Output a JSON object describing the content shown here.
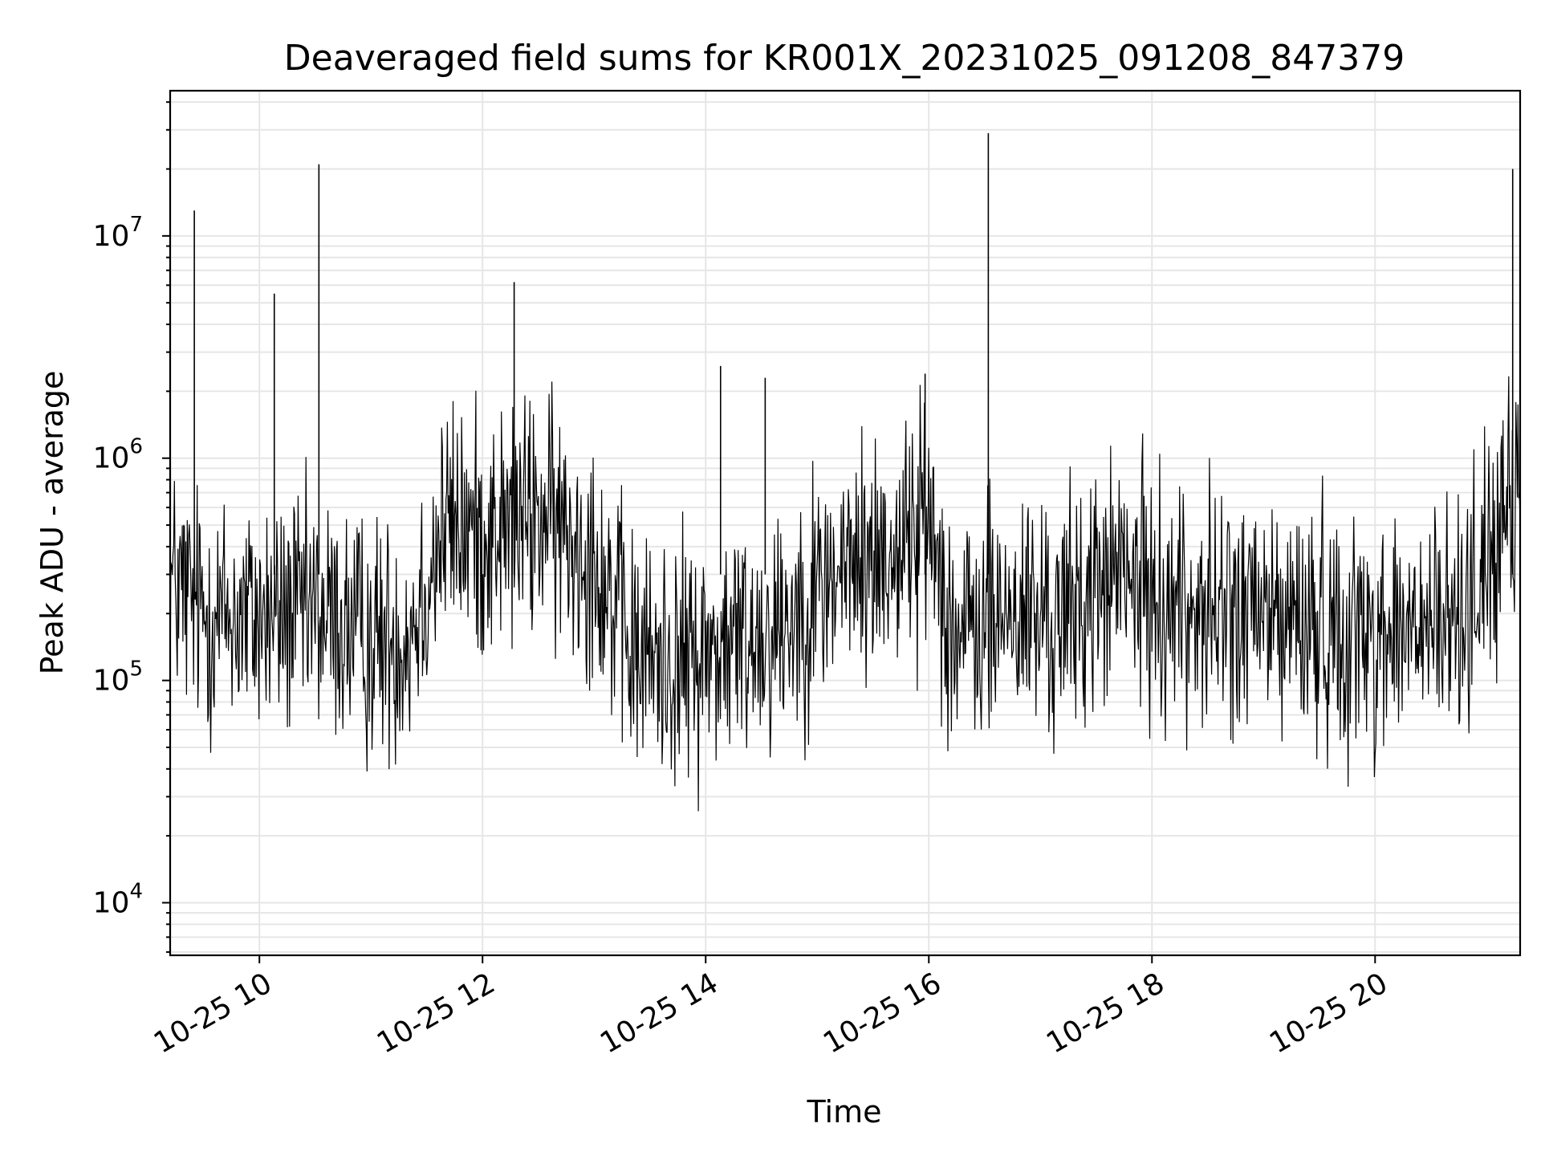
{
  "chart_data": {
    "type": "line",
    "title": "Deaveraged field sums for KR001X_20231025_091208_847379",
    "xlabel": "Time",
    "ylabel": "Peak ADU - average",
    "yscale": "log",
    "xlim": [
      "2023-10-25T09:12",
      "2023-10-25T21:18"
    ],
    "ylim": [
      5800,
      45000000
    ],
    "grid": true,
    "line_color": "#000000",
    "grid_color": "#e6e6e6",
    "x_ticks": [
      {
        "value": "2023-10-25T10:00",
        "label": "10-25 10"
      },
      {
        "value": "2023-10-25T12:00",
        "label": "10-25 12"
      },
      {
        "value": "2023-10-25T14:00",
        "label": "10-25 14"
      },
      {
        "value": "2023-10-25T16:00",
        "label": "10-25 16"
      },
      {
        "value": "2023-10-25T18:00",
        "label": "10-25 18"
      },
      {
        "value": "2023-10-25T20:00",
        "label": "10-25 20"
      }
    ],
    "y_ticks": [
      {
        "value": 10000,
        "base": "10",
        "exp": "4"
      },
      {
        "value": 100000,
        "base": "10",
        "exp": "5"
      },
      {
        "value": 1000000,
        "base": "10",
        "exp": "6"
      },
      {
        "value": 10000000,
        "base": "10",
        "exp": "7"
      }
    ],
    "x": [
      "2023-10-25T09:12",
      "2023-10-25T09:30",
      "2023-10-25T10:00",
      "2023-10-25T10:30",
      "2023-10-25T11:00",
      "2023-10-25T11:20",
      "2023-10-25T11:40",
      "2023-10-25T12:00",
      "2023-10-25T12:30",
      "2023-10-25T13:00",
      "2023-10-25T13:20",
      "2023-10-25T13:45",
      "2023-10-25T14:10",
      "2023-10-25T14:40",
      "2023-10-25T15:10",
      "2023-10-25T15:40",
      "2023-10-25T16:00",
      "2023-10-25T16:15",
      "2023-10-25T16:40",
      "2023-10-25T17:10",
      "2023-10-25T17:40",
      "2023-10-25T18:10",
      "2023-10-25T18:40",
      "2023-10-25T19:10",
      "2023-10-25T19:40",
      "2023-10-25T20:10",
      "2023-10-25T20:40",
      "2023-10-25T21:00",
      "2023-10-25T21:18"
    ],
    "y": [
      280000,
      200000,
      190000,
      200000,
      150000,
      160000,
      500000,
      450000,
      550000,
      380000,
      130000,
      120000,
      140000,
      180000,
      300000,
      380000,
      550000,
      150000,
      200000,
      180000,
      300000,
      220000,
      200000,
      190000,
      170000,
      160000,
      170000,
      350000,
      600000
    ],
    "spikes": [
      {
        "x": "2023-10-25T09:25",
        "y": 13000000
      },
      {
        "x": "2023-10-25T10:08",
        "y": 5500000
      },
      {
        "x": "2023-10-25T10:32",
        "y": 21000000
      },
      {
        "x": "2023-10-25T12:17",
        "y": 6200000
      },
      {
        "x": "2023-10-25T14:08",
        "y": 2600000
      },
      {
        "x": "2023-10-25T14:32",
        "y": 2300000
      },
      {
        "x": "2023-10-25T15:58",
        "y": 2400000
      },
      {
        "x": "2023-10-25T16:32",
        "y": 29000000
      },
      {
        "x": "2023-10-25T21:14",
        "y": 20000000
      }
    ]
  }
}
